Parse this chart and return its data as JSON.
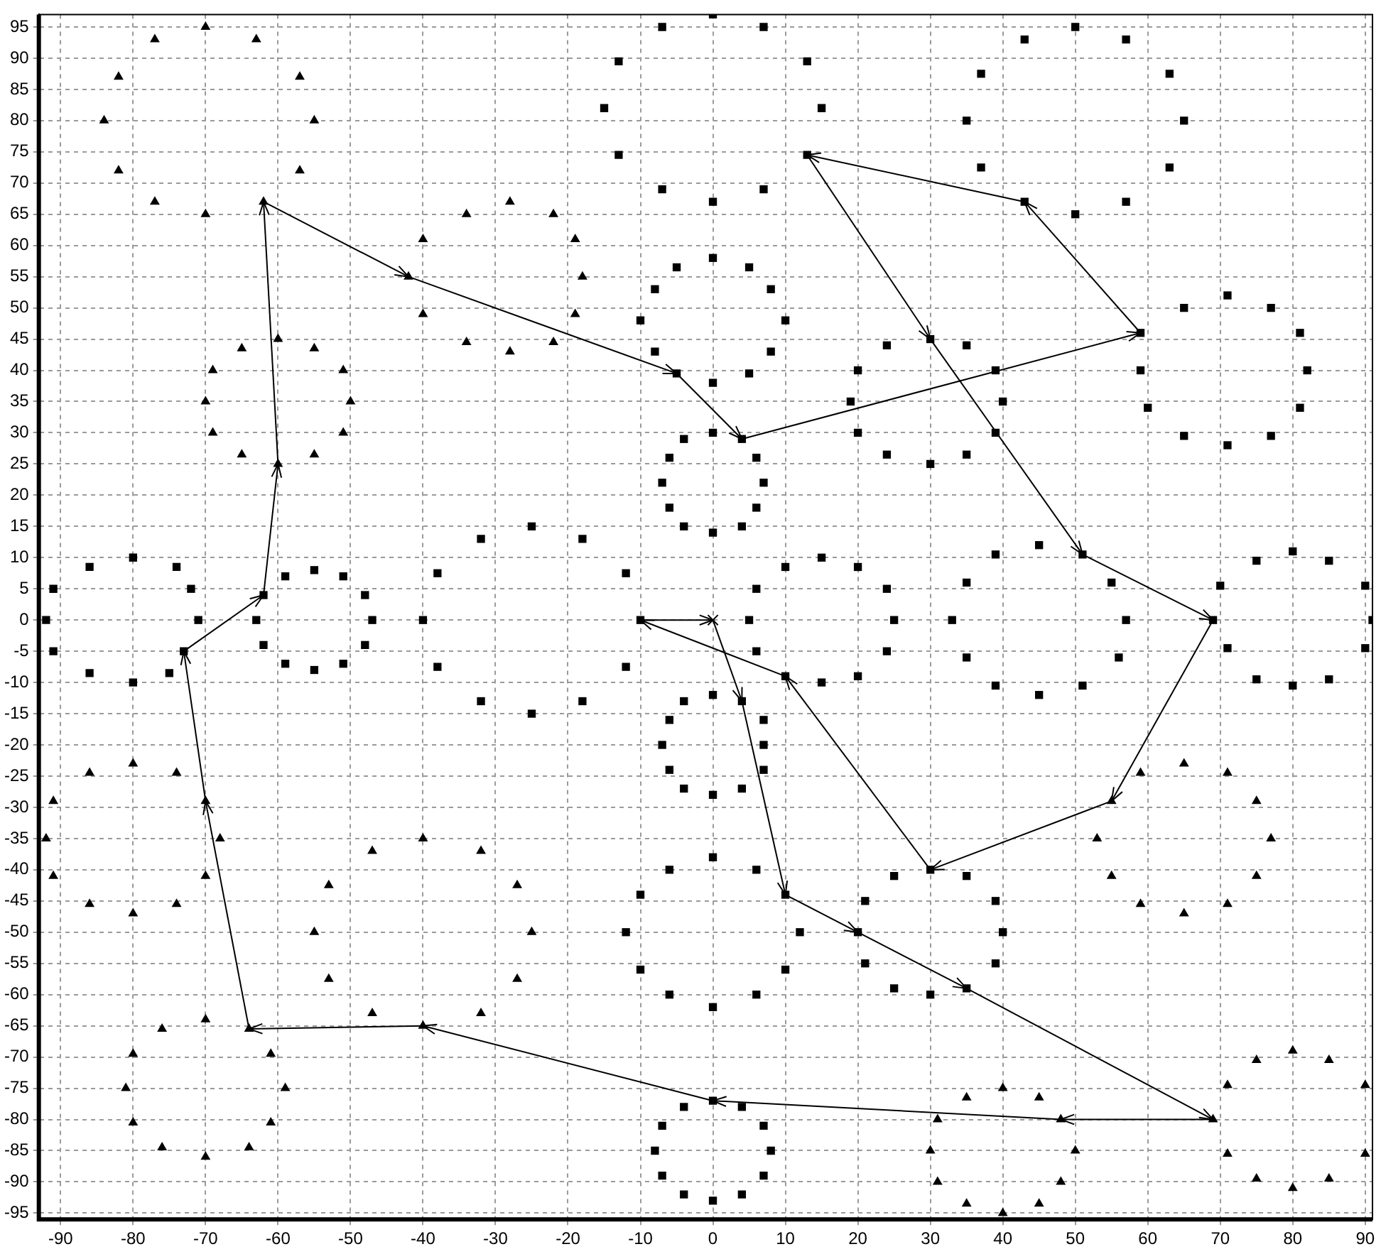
{
  "chart_data": {
    "type": "scatter",
    "xlim": [
      -93,
      91
    ],
    "ylim": [
      -96,
      97
    ],
    "xticks": [
      -90,
      -80,
      -70,
      -60,
      -50,
      -40,
      -30,
      -20,
      -10,
      0,
      10,
      20,
      30,
      40,
      50,
      60,
      70,
      80,
      90
    ],
    "yticks": [
      -95,
      -90,
      -85,
      -80,
      -75,
      -70,
      -65,
      -60,
      -55,
      -50,
      -45,
      -40,
      -35,
      -30,
      -25,
      -20,
      -15,
      -10,
      -5,
      0,
      5,
      10,
      15,
      20,
      25,
      30,
      35,
      40,
      45,
      50,
      55,
      60,
      65,
      70,
      75,
      80,
      85,
      90,
      95
    ],
    "grid": true,
    "legend": false,
    "series": [
      {
        "type": "scatter",
        "marker": "triangle",
        "color": "#000000",
        "x": [
          -70,
          -77,
          -63,
          -82,
          -57,
          -84,
          -55,
          -82,
          -57,
          -77,
          -70,
          -62,
          -34,
          -28,
          -22,
          -40,
          -19,
          -42,
          -18,
          -40,
          -19,
          -34,
          -28,
          -22,
          -65,
          -60,
          -55,
          -69,
          -51,
          -70,
          -50,
          -69,
          -51,
          -65,
          -60,
          -55,
          -86,
          -80,
          -74,
          -91,
          -70,
          -92,
          -68,
          -91,
          -70,
          -86,
          -80,
          -74,
          -40,
          -47,
          -32,
          -53,
          -27,
          -55,
          -25,
          -53,
          -27,
          -47,
          -32,
          -40,
          -70,
          -76,
          -64,
          -80,
          -61,
          -81,
          -59,
          -80,
          -61,
          -76,
          -70,
          -64,
          59,
          65,
          71,
          55,
          75,
          53,
          77,
          55,
          75,
          59,
          65,
          71,
          35,
          40,
          45,
          31,
          48,
          30,
          50,
          31,
          48,
          35,
          40,
          45,
          75,
          80,
          85,
          71,
          90,
          69,
          71,
          90,
          75,
          80,
          85
        ],
        "values": [
          95,
          93,
          93,
          87,
          87,
          80,
          80,
          72,
          72,
          67,
          65,
          67,
          65,
          67,
          65,
          61,
          61,
          55,
          55,
          49,
          49,
          44.5,
          43,
          44.5,
          43.5,
          45,
          43.5,
          40,
          40,
          35,
          35,
          30,
          30,
          26.5,
          25,
          26.5,
          -24.5,
          -23,
          -24.5,
          -29,
          -29,
          -35,
          -35,
          -41,
          -41,
          -45.5,
          -47,
          -45.5,
          -35,
          -37,
          -37,
          -42.5,
          -42.5,
          -50,
          -50,
          -57.5,
          -57.5,
          -63,
          -63,
          -65,
          -64,
          -65.5,
          -65.5,
          -69.5,
          -69.5,
          -75,
          -75,
          -80.5,
          -80.5,
          -84.5,
          -86,
          -84.5,
          -24.5,
          -23,
          -24.5,
          -29,
          -29,
          -35,
          -35,
          -41,
          -41,
          -45.5,
          -47,
          -45.5,
          -76.5,
          -75,
          -76.5,
          -80,
          -80,
          -85,
          -85,
          -90,
          -90,
          -93.5,
          -95,
          -93.5,
          -70.5,
          -69,
          -70.5,
          -74.5,
          -74.5,
          -80,
          -85.5,
          -85.5,
          -89.5,
          -91,
          -89.5
        ]
      },
      {
        "type": "scatter",
        "marker": "square",
        "color": "#000000",
        "x": [
          0,
          -7,
          7,
          -13,
          13,
          -15,
          15,
          -13,
          13,
          -7,
          0,
          7,
          50,
          43,
          57,
          37,
          63,
          35,
          65,
          37,
          63,
          43,
          50,
          57,
          0,
          -5,
          5,
          -8,
          8,
          -10,
          10,
          -8,
          8,
          -5,
          0,
          5,
          0,
          -4,
          4,
          -6,
          6,
          -7,
          7,
          -6,
          6,
          -4,
          0,
          4,
          30,
          24,
          35,
          20,
          39,
          19,
          40,
          20,
          39,
          24,
          30,
          35,
          59,
          65,
          71,
          77,
          81,
          82,
          81,
          77,
          71,
          65,
          60,
          59,
          -80,
          -86,
          -74,
          -91,
          -72,
          -92,
          -71,
          -91,
          -73,
          -86,
          -80,
          -75,
          -62,
          -59,
          -55,
          -51,
          -48,
          -47,
          -48,
          -51,
          -55,
          -59,
          -62,
          -63,
          -25,
          -32,
          -18,
          -38,
          -12,
          -40,
          -10,
          -38,
          -12,
          -32,
          -25,
          -18,
          15,
          10,
          20,
          6,
          24,
          5,
          25,
          6,
          24,
          10,
          15,
          20,
          45,
          39,
          51,
          35,
          55,
          33,
          57,
          35,
          56,
          39,
          45,
          51,
          70,
          75,
          80,
          85,
          90,
          69,
          91,
          71,
          75,
          80,
          85,
          90,
          0,
          -4,
          4,
          -6,
          7,
          -7,
          7,
          -6,
          7,
          -4,
          0,
          4,
          0,
          -6,
          6,
          -10,
          10,
          -12,
          12,
          -10,
          10,
          -6,
          0,
          6,
          25,
          30,
          35,
          21,
          39,
          20,
          40,
          21,
          39,
          25,
          30,
          35,
          0,
          -4,
          4,
          -7,
          7,
          -8,
          8,
          -7,
          7,
          -4,
          0,
          4
        ],
        "values": [
          97,
          95,
          95,
          89.5,
          89.5,
          82,
          82,
          74.5,
          74.5,
          69,
          67,
          69,
          95,
          93,
          93,
          87.5,
          87.5,
          80,
          80,
          72.5,
          72.5,
          67,
          65,
          67,
          58,
          56.5,
          56.5,
          53,
          53,
          48,
          48,
          43,
          43,
          39.5,
          38,
          39.5,
          30,
          29,
          29,
          26,
          26,
          22,
          22,
          18,
          18,
          15,
          14,
          15,
          45,
          44,
          44,
          40,
          40,
          35,
          35,
          30,
          30,
          26.5,
          25,
          26.5,
          46,
          50,
          52,
          50,
          46,
          40,
          34,
          29.5,
          28,
          29.5,
          34,
          40,
          10,
          8.5,
          8.5,
          5,
          5,
          0,
          0,
          -5,
          -5,
          -8.5,
          -10,
          -8.5,
          4,
          7,
          8,
          7,
          4,
          0,
          -4,
          -7,
          -8,
          -7,
          -4,
          0,
          15,
          13,
          13,
          7.5,
          7.5,
          0,
          0,
          -7.5,
          -7.5,
          -13,
          -15,
          -13,
          10,
          8.5,
          8.5,
          5,
          5,
          0,
          0,
          -5,
          -5,
          -9,
          -10,
          -9,
          12,
          10.5,
          10.5,
          6,
          6,
          0,
          0,
          -6,
          -6,
          -10.5,
          -12,
          -10.5,
          5.5,
          9.5,
          11,
          9.5,
          5.5,
          0,
          0,
          -4.5,
          -9.5,
          -10.5,
          -9.5,
          -4.5,
          -12,
          -13,
          -13,
          -16,
          -16,
          -20,
          -20,
          -24,
          -24,
          -27,
          -28,
          -27,
          -38,
          -40,
          -40,
          -44,
          -44,
          -50,
          -50,
          -56,
          -56,
          -60,
          -62,
          -60,
          -41,
          -40,
          -41,
          -45,
          -45,
          -50,
          -50,
          -55,
          -55,
          -59,
          -60,
          -59,
          -77,
          -78,
          -78,
          -81,
          -81,
          -85,
          -85,
          -89,
          -89,
          -92,
          -93,
          -92
        ]
      },
      {
        "type": "scatter",
        "marker": "cross",
        "color": "#000000",
        "x": [
          0
        ],
        "values": [
          0
        ]
      }
    ]
  }
}
